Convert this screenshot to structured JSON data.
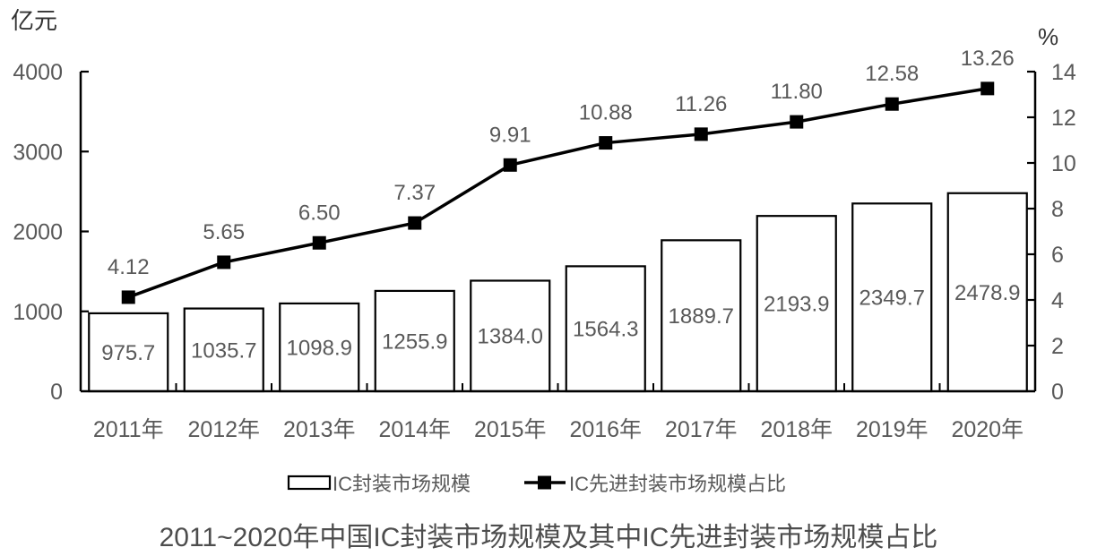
{
  "units": {
    "left": "亿元",
    "right": "%"
  },
  "title": "2011~2020年中国IC封装市场规模及其中IC先进封装市场规模占比",
  "legend": {
    "bar_label": "IC封装市场规模",
    "line_label": "IC先进封装市场规模占比"
  },
  "chart_data": {
    "type": "bar+line",
    "title": "2011~2020年中国IC封装市场规模及其中IC先进封装市场规模占比",
    "categories": [
      "2011年",
      "2012年",
      "2013年",
      "2014年",
      "2015年",
      "2016年",
      "2017年",
      "2018年",
      "2019年",
      "2020年"
    ],
    "series": [
      {
        "name": "IC封装市场规模",
        "type": "bar",
        "axis": "left",
        "unit": "亿元",
        "values": [
          975.7,
          1035.7,
          1098.9,
          1255.9,
          1384.0,
          1564.3,
          1889.7,
          2193.9,
          2349.7,
          2478.9
        ],
        "value_labels": [
          "975.7",
          "1035.7",
          "1098.9",
          "1255.9",
          "1384.0",
          "1564.3",
          "1889.7",
          "2193.9",
          "2349.7",
          "2478.9"
        ]
      },
      {
        "name": "IC先进封装市场规模占比",
        "type": "line",
        "axis": "right",
        "unit": "%",
        "values": [
          4.12,
          5.65,
          6.5,
          7.37,
          9.91,
          10.88,
          11.26,
          11.8,
          12.58,
          13.26
        ],
        "value_labels": [
          "4.12",
          "5.65",
          "6.50",
          "7.37",
          "9.91",
          "10.88",
          "11.26",
          "11.80",
          "12.58",
          "13.26"
        ]
      }
    ],
    "left_axis": {
      "unit": "亿元",
      "range": [
        0,
        4000
      ],
      "ticks": [
        "0",
        "1000",
        "2000",
        "3000",
        "4000"
      ]
    },
    "right_axis": {
      "unit": "%",
      "range": [
        0,
        14
      ],
      "ticks": [
        "0",
        "2",
        "4",
        "6",
        "8",
        "10",
        "12",
        "14"
      ]
    },
    "grid": false,
    "legend_position": "bottom",
    "colors": {
      "bar_fill": "#ffffff",
      "bar_stroke": "#000000",
      "line": "#000000",
      "marker": "#000000",
      "axis": "#000000",
      "label_text": "#595959"
    }
  }
}
